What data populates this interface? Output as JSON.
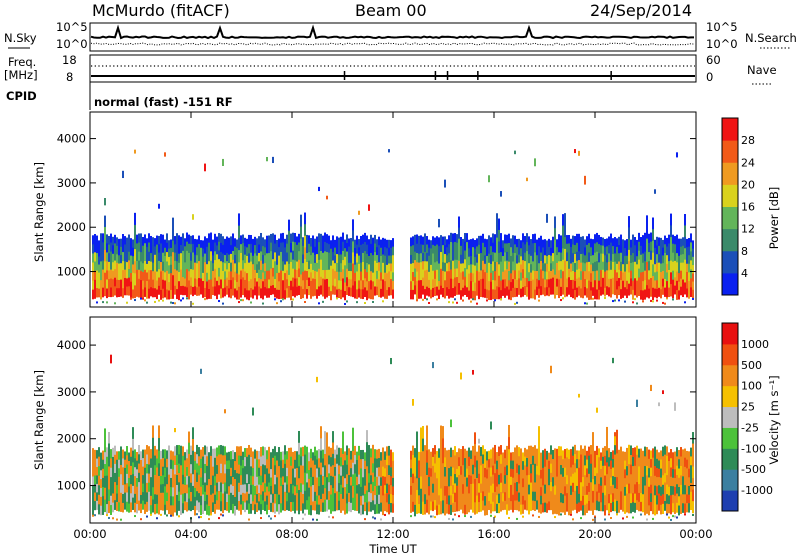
{
  "header": {
    "station": "McMurdo (fitACF)",
    "beam": "Beam 00",
    "date": "24/Sep/2014"
  },
  "aux_panel": {
    "nsky_label": "N.Sky",
    "nsky_top": "10^5",
    "nsky_bottom": "10^0",
    "nsearch_label": "N.Search",
    "nsearch_top": "10^5",
    "nsearch_bottom": "10^0",
    "freq_label": "Freq.",
    "freq_unit": "[MHz]",
    "freq_top": "18",
    "freq_bottom": "8",
    "nave_label": "Nave",
    "nave_top": "60",
    "nave_bottom": "0",
    "cpid_label": "CPID",
    "cpid_value": "normal (fast) -151 RF"
  },
  "chart_data": [
    {
      "type": "heatmap",
      "title": "",
      "xlabel": "",
      "ylabel": "Slant Range [km]",
      "ylim": [
        200,
        4600
      ],
      "yticks": [
        "1000",
        "2000",
        "3000",
        "4000"
      ],
      "xlim": [
        "00:00",
        "24:00"
      ],
      "colorbar": {
        "label": "Power [dB]",
        "ticks": [
          "4",
          "8",
          "12",
          "16",
          "20",
          "24",
          "28"
        ],
        "colors": [
          "#0a20f0",
          "#1b4fb8",
          "#3a8a6a",
          "#63b55a",
          "#d9d21d",
          "#ef9a20",
          "#f25a18",
          "#f01414"
        ]
      },
      "echo_band": {
        "lower_edge_km": 500,
        "upper_edge_km": 1700,
        "strongest_dB": 28
      }
    },
    {
      "type": "heatmap",
      "title": "",
      "xlabel": "Time UT",
      "ylabel": "Slant Range [km]",
      "ylim": [
        200,
        4600
      ],
      "yticks": [
        "1000",
        "2000",
        "3000",
        "4000"
      ],
      "xticks": [
        "00:00",
        "04:00",
        "08:00",
        "12:00",
        "16:00",
        "20:00",
        "00:00"
      ],
      "colorbar": {
        "label": "Velocity [m s⁻¹]",
        "ticks": [
          "1000",
          "500",
          "100",
          "25",
          "-25",
          "-100",
          "-500",
          "-1000"
        ],
        "colors": [
          "#1e3fb0",
          "#3b7fa0",
          "#2e8b57",
          "#4cc23a",
          "#bdbdbd",
          "#f5c000",
          "#f08a1a",
          "#f05010",
          "#e81010"
        ]
      },
      "echo_band": {
        "lower_edge_km": 500,
        "upper_edge_km": 1700
      }
    }
  ],
  "colors": {
    "axis": "#000000",
    "background": "#ffffff"
  }
}
